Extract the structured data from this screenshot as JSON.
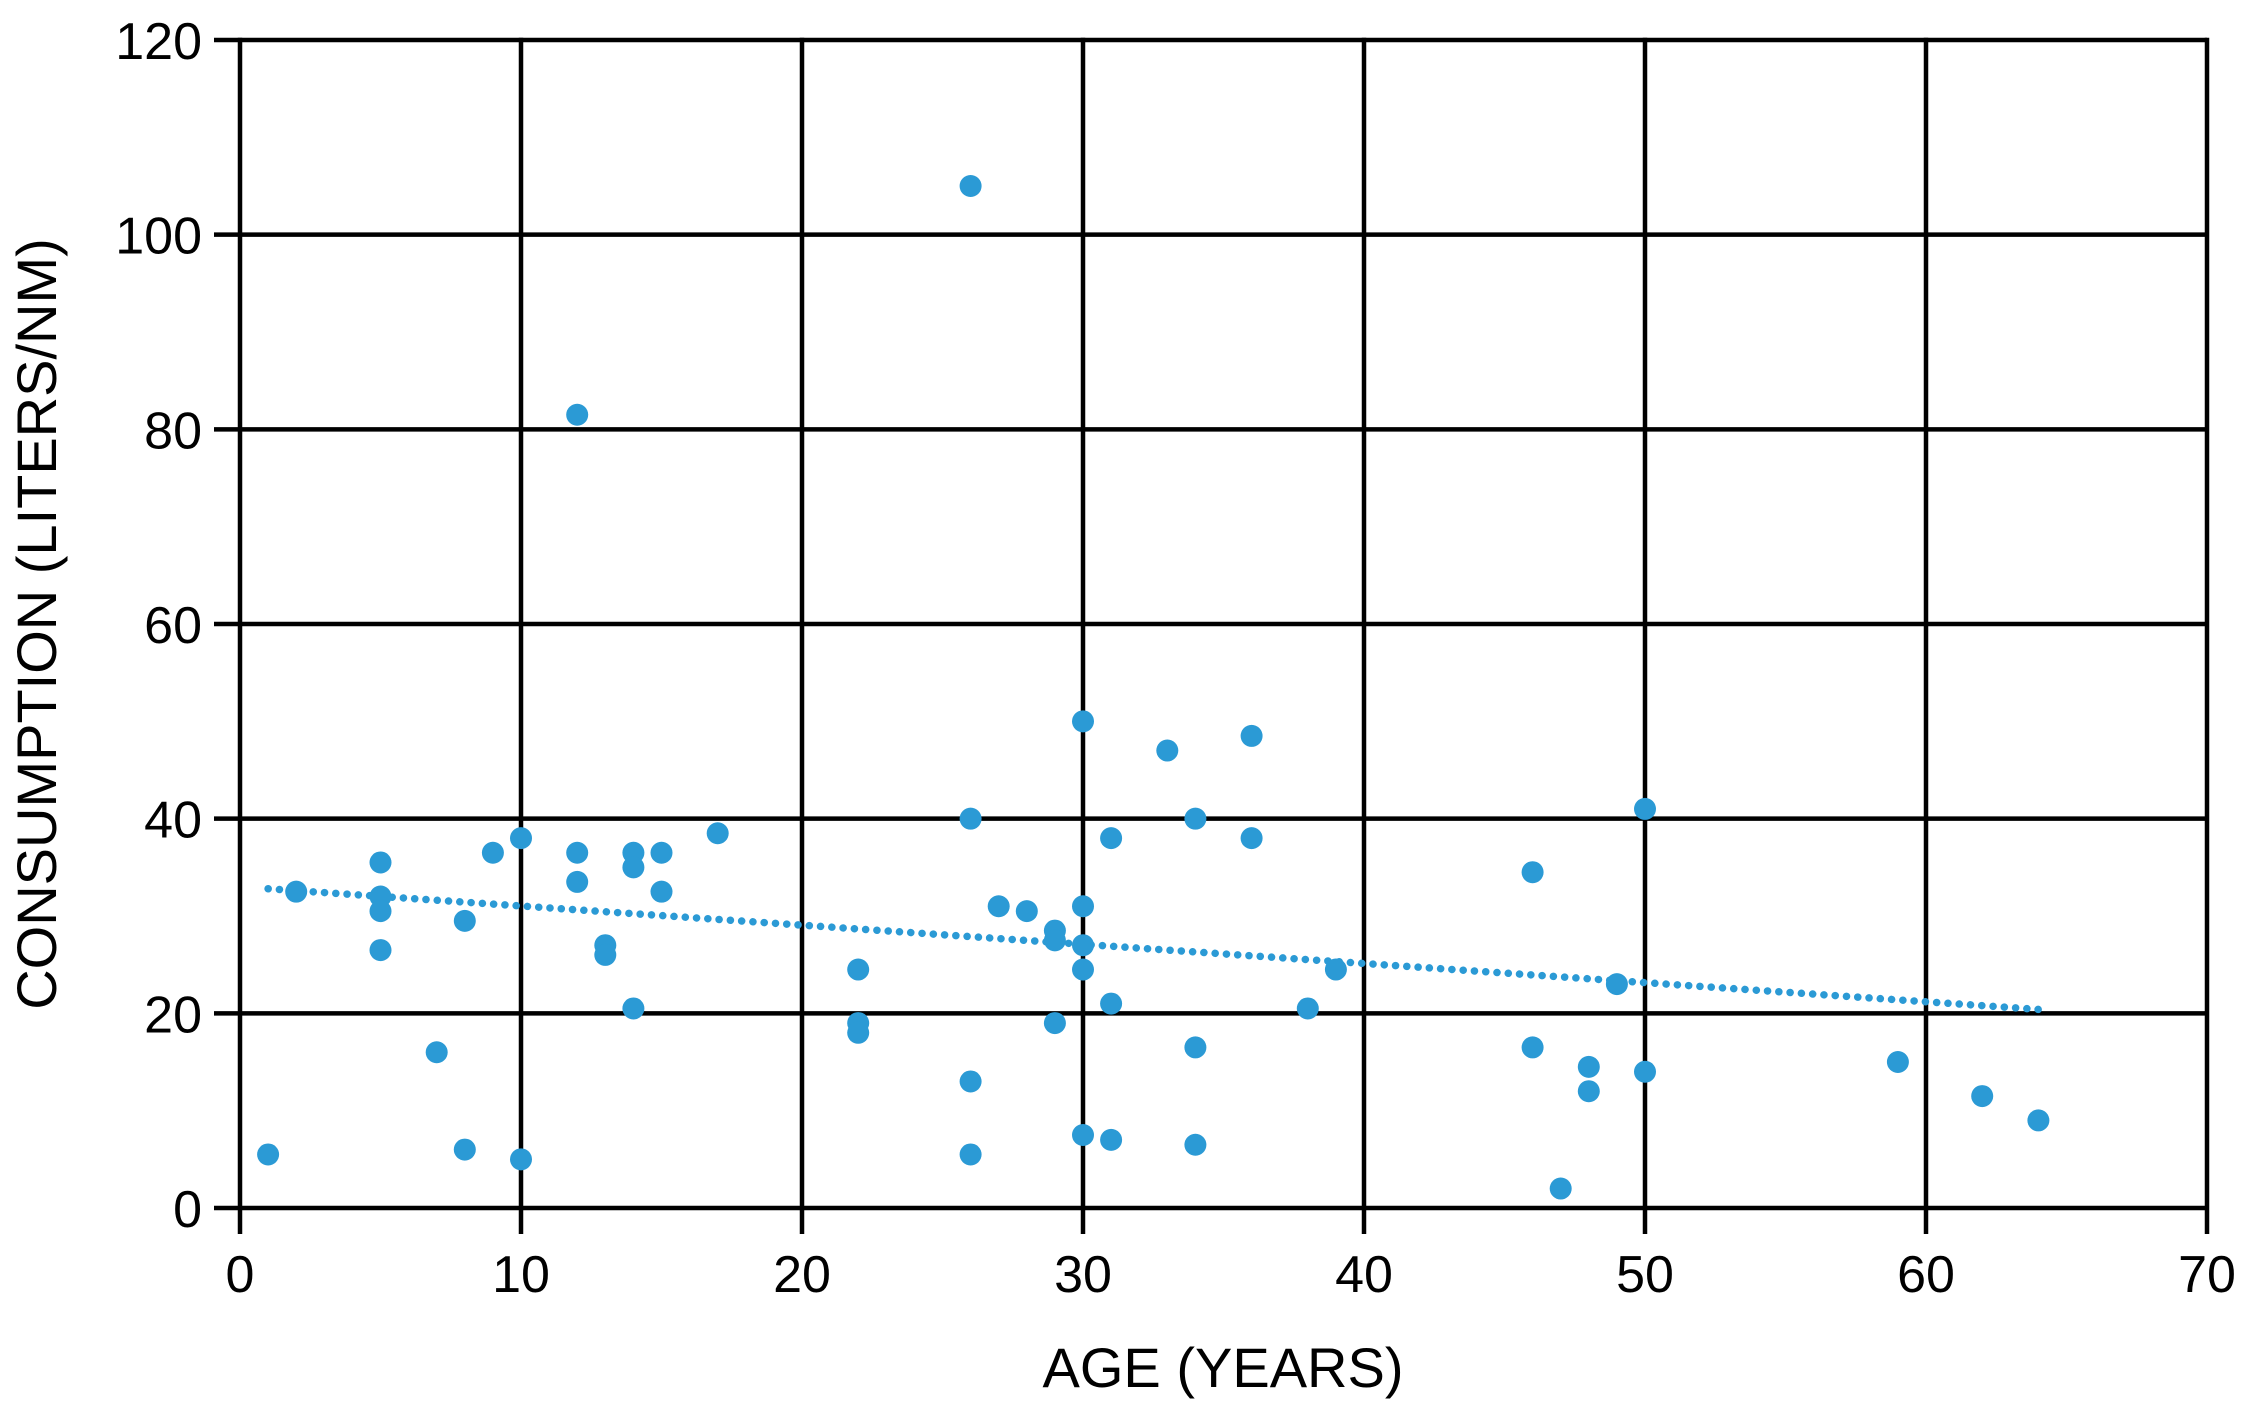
{
  "figure": {
    "background": "#FFFFFF",
    "grid_color": "#000000",
    "marker_color": "#2B9AD5",
    "trendline_color": "#2B9AD5",
    "text_color": "#000000"
  },
  "chart_data": {
    "type": "scatter",
    "title": "",
    "xlabel": "AGE (YEARS)",
    "ylabel": "CONSUMPTION (LITERS/NM)",
    "xlim": [
      0,
      70
    ],
    "ylim": [
      0,
      120
    ],
    "x_ticks": [
      0,
      10,
      20,
      30,
      40,
      50,
      60,
      70
    ],
    "y_ticks": [
      0,
      20,
      40,
      60,
      80,
      100,
      120
    ],
    "grid": true,
    "legend": false,
    "series": [
      {
        "name": "consumption-vs-age",
        "points": [
          [
            1,
            5.5
          ],
          [
            2,
            32.5
          ],
          [
            5,
            35.5
          ],
          [
            5,
            32
          ],
          [
            5,
            30.5
          ],
          [
            5,
            26.5
          ],
          [
            7,
            16
          ],
          [
            8,
            29.5
          ],
          [
            8,
            6
          ],
          [
            9,
            36.5
          ],
          [
            10,
            38
          ],
          [
            10,
            5
          ],
          [
            12,
            81.5
          ],
          [
            12,
            36.5
          ],
          [
            12,
            33.5
          ],
          [
            13,
            27
          ],
          [
            13,
            26
          ],
          [
            14,
            36.5
          ],
          [
            14,
            35
          ],
          [
            14,
            20.5
          ],
          [
            15,
            36.5
          ],
          [
            15,
            32.5
          ],
          [
            17,
            38.5
          ],
          [
            22,
            24.5
          ],
          [
            22,
            19
          ],
          [
            22,
            18
          ],
          [
            26,
            105
          ],
          [
            26,
            40
          ],
          [
            26,
            13
          ],
          [
            26,
            5.5
          ],
          [
            27,
            31
          ],
          [
            28,
            30.5
          ],
          [
            29,
            28.5
          ],
          [
            29,
            27.5
          ],
          [
            29,
            19
          ],
          [
            30,
            50
          ],
          [
            30,
            31
          ],
          [
            30,
            27
          ],
          [
            30,
            24.5
          ],
          [
            30,
            7.5
          ],
          [
            31,
            38
          ],
          [
            31,
            21
          ],
          [
            31,
            7
          ],
          [
            33,
            47
          ],
          [
            34,
            40
          ],
          [
            34,
            16.5
          ],
          [
            34,
            6.5
          ],
          [
            36,
            48.5
          ],
          [
            36,
            38
          ],
          [
            38,
            20.5
          ],
          [
            39,
            24.5
          ],
          [
            46,
            34.5
          ],
          [
            46,
            16.5
          ],
          [
            47,
            2
          ],
          [
            48,
            14.5
          ],
          [
            48,
            12
          ],
          [
            49,
            23
          ],
          [
            50,
            41
          ],
          [
            50,
            14
          ],
          [
            59,
            15
          ],
          [
            62,
            11.5
          ],
          [
            64,
            9
          ]
        ]
      }
    ],
    "trendline": {
      "style": "dotted",
      "x1": 1,
      "y1": 32.8,
      "x2": 64,
      "y2": 20.4
    }
  }
}
